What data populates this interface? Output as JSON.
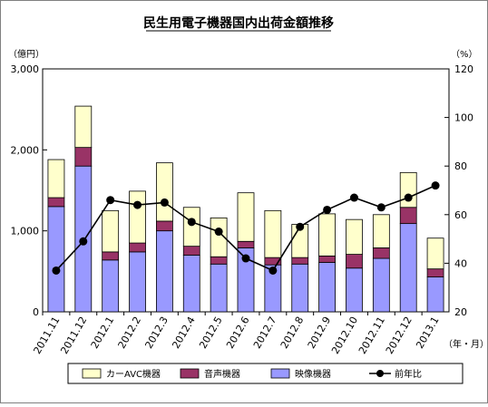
{
  "chart_data": {
    "type": "bar",
    "stacked": true,
    "title": "民生用電子機器国内出荷金額推移",
    "ylabel_left": "（億円）",
    "ylabel_right": "（%）",
    "xlabel": "（年・月）",
    "ylim_left": [
      0,
      3000
    ],
    "ylim_right": [
      20,
      120
    ],
    "yticks_left": [
      "0",
      "1,000",
      "2,000",
      "3,000"
    ],
    "yticks_right": [
      "20",
      "40",
      "60",
      "80",
      "100",
      "120"
    ],
    "categories": [
      "2011.11",
      "2011.12",
      "2012.1",
      "2012.2",
      "2012.3",
      "2012.4",
      "2012.5",
      "2012.6",
      "2012.7",
      "2012.8",
      "2012.9",
      "2012.10",
      "2012.11",
      "2012.12",
      "2013.1"
    ],
    "series": [
      {
        "name": "映像機器",
        "axis": "left",
        "color": "#9999ff",
        "values": [
          1300,
          1800,
          640,
          740,
          1000,
          700,
          590,
          790,
          580,
          590,
          610,
          540,
          660,
          1090,
          430
        ]
      },
      {
        "name": "音声機器",
        "axis": "left",
        "color": "#993366",
        "values": [
          110,
          230,
          100,
          110,
          120,
          110,
          90,
          80,
          90,
          80,
          80,
          170,
          130,
          200,
          100
        ]
      },
      {
        "name": "カーAVC機器",
        "axis": "left",
        "color": "#ffffcc",
        "values": [
          470,
          510,
          510,
          640,
          720,
          480,
          480,
          600,
          580,
          410,
          520,
          430,
          410,
          430,
          380
        ]
      },
      {
        "name": "前年比",
        "axis": "right",
        "type": "line",
        "color": "#000000",
        "values": [
          37,
          49,
          66,
          64,
          65,
          57,
          53,
          42,
          37,
          55,
          62,
          67,
          63,
          67,
          72
        ]
      }
    ],
    "legend": [
      "カーAVC機器",
      "音声機器",
      "映像機器",
      "前年比"
    ],
    "legend_position": "bottom",
    "grid": false
  }
}
